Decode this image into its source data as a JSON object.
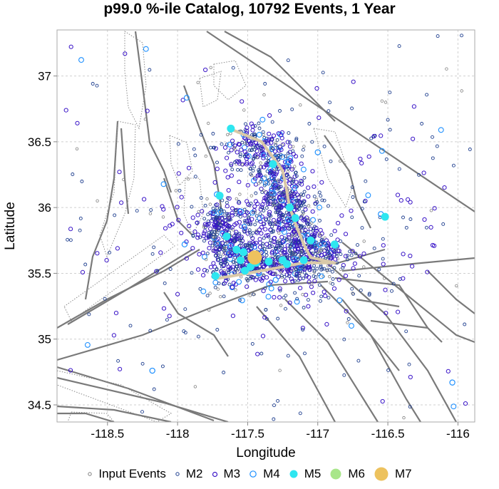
{
  "chart_data": {
    "type": "scatter",
    "title": "p99.0 %-ile Catalog, 10792 Events, 1 Year",
    "xlabel": "Longitude",
    "ylabel": "Latitude",
    "xlim": [
      -118.86,
      -115.88
    ],
    "ylim": [
      34.37,
      37.35
    ],
    "xticks": [
      -118.5,
      -118,
      -117.5,
      -117,
      -116.5,
      -116
    ],
    "yticks": [
      34.5,
      35,
      35.5,
      36,
      36.5,
      37
    ],
    "grid": true,
    "legend_position": "bottom",
    "legend": [
      "Input Events",
      "M2",
      "M3",
      "M4",
      "M5",
      "M6",
      "M7"
    ],
    "series": [
      {
        "name": "M7",
        "points": [
          [
            -117.45,
            35.62
          ]
        ]
      },
      {
        "name": "M5",
        "points": [
          [
            -117.65,
            35.78
          ],
          [
            -117.58,
            35.68
          ],
          [
            -117.53,
            35.66
          ],
          [
            -117.44,
            35.58
          ],
          [
            -117.48,
            35.55
          ],
          [
            -117.35,
            35.59
          ],
          [
            -117.22,
            35.57
          ],
          [
            -117.1,
            35.6
          ],
          [
            -117.2,
            36.0
          ],
          [
            -117.32,
            36.33
          ],
          [
            -117.05,
            35.75
          ],
          [
            -116.88,
            35.72
          ],
          [
            -117.73,
            35.48
          ],
          [
            -117.7,
            36.09
          ],
          [
            -116.52,
            35.93
          ],
          [
            -117.62,
            36.6
          ],
          [
            -117.16,
            35.92
          ],
          [
            -117.55,
            35.6
          ],
          [
            -117.25,
            35.6
          ],
          [
            -117.52,
            35.52
          ]
        ]
      },
      {
        "name": "M4",
        "points": [
          [
            -117.68,
            35.8
          ],
          [
            -117.42,
            35.5
          ],
          [
            -117.72,
            36.1
          ],
          [
            -116.55,
            35.95
          ],
          [
            -118.18,
            34.76
          ],
          [
            -117.0,
            36.42
          ],
          [
            -117.3,
            35.45
          ],
          [
            -117.55,
            35.97
          ],
          [
            -116.04,
            34.67
          ],
          [
            -117.95,
            35.72
          ]
        ]
      }
    ],
    "fault_trace": [
      [
        -117.63,
        36.6
      ],
      [
        -117.4,
        36.5
      ],
      [
        -117.25,
        36.28
      ],
      [
        -117.22,
        36.12
      ],
      [
        -117.2,
        36.0
      ],
      [
        -117.15,
        35.85
      ],
      [
        -117.1,
        35.72
      ],
      [
        -117.05,
        35.62
      ],
      [
        -116.88,
        35.58
      ],
      [
        -117.1,
        35.58
      ],
      [
        -117.3,
        35.54
      ],
      [
        -117.5,
        35.5
      ],
      [
        -117.72,
        35.46
      ]
    ],
    "colors": {
      "input_events": "#808080",
      "M2": "#1f3f8f",
      "M3": "#3b16c8",
      "M4": "#1e90ff",
      "M5": "#2ee6f0",
      "M6": "#a8e68a",
      "M7": "#edc25e",
      "faults": "#7a7a7a",
      "fault_trace": "#d9c9a8"
    }
  }
}
